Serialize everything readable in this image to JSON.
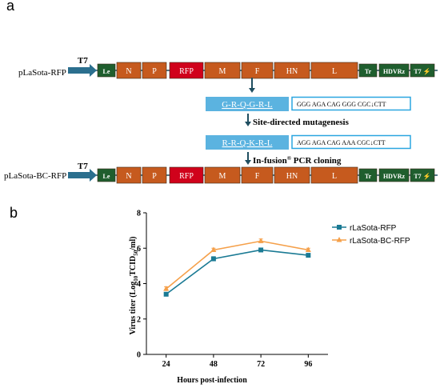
{
  "panel_a": {
    "label": "a",
    "construct_top": "pLaSota-RFP",
    "construct_bottom": "pLaSota-BC-RFP",
    "promoter": "T7",
    "segments": [
      {
        "label": "Le",
        "kind": "leader"
      },
      {
        "label": "N",
        "kind": "gene"
      },
      {
        "label": "P",
        "kind": "gene"
      },
      {
        "label": "RFP",
        "kind": "reporter"
      },
      {
        "label": "M",
        "kind": "gene"
      },
      {
        "label": "F",
        "kind": "gene"
      },
      {
        "label": "HN",
        "kind": "gene"
      },
      {
        "label": "L",
        "kind": "gene"
      },
      {
        "label": "Tr",
        "kind": "leader"
      },
      {
        "label": "HDVRz",
        "kind": "leader"
      },
      {
        "label": "T7 ⚡",
        "kind": "leader"
      }
    ],
    "wild_type_site": {
      "motif": "G-R-Q-G-R-L",
      "sequence": "GGG AGA CAG GGG CGC↓CTT"
    },
    "mutant_site": {
      "motif": "R-R-Q-K-R-L",
      "sequence": "AGG AGA CAG AAA CGC↓CTT"
    },
    "step1": "Site-directed mutagenesis",
    "step2_prefix": "In-fusion",
    "step2_reg": "®",
    "step2_suffix": " PCR cloning",
    "colors": {
      "gene": "#c65a1e",
      "reporter": "#d0021b",
      "leader": "#1f5e2e",
      "motif_box": "#5bb3e0",
      "seq_border": "#2aa6e0",
      "arrow": "#2b6f8e",
      "line": "#1f4e60"
    }
  },
  "panel_b": {
    "label": "b",
    "chart_data": {
      "type": "line",
      "x": [
        24,
        48,
        72,
        96
      ],
      "xlabel": "Hours post-infection",
      "ylabel": "Virus titer (Log10TCID50/ml)",
      "ylabel_parts": {
        "pre": "Virus titer (Log",
        "sub1": "10",
        "mid": "TCID",
        "sub2": "50",
        "post": "/ml)"
      },
      "ylim": [
        0,
        8
      ],
      "yticks": [
        0,
        2,
        4,
        6,
        8
      ],
      "legend_position": "top-right",
      "grid": false,
      "series": [
        {
          "name": "rLaSota-RFP",
          "values": [
            3.4,
            5.4,
            5.9,
            5.6
          ],
          "errors": [
            0.1,
            0.12,
            0.1,
            0.08
          ],
          "color": "#1a7a94",
          "marker": "square"
        },
        {
          "name": "rLaSota-BC-RFP",
          "values": [
            3.7,
            5.9,
            6.4,
            5.9
          ],
          "errors": [
            0.12,
            0.1,
            0.12,
            0.1
          ],
          "color": "#f5a04a",
          "marker": "triangle"
        }
      ]
    }
  }
}
